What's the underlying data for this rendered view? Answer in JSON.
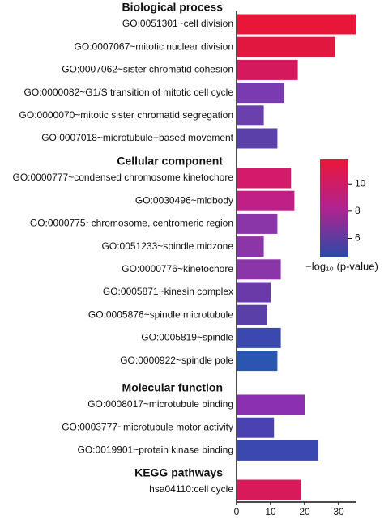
{
  "chart_data": {
    "type": "bar",
    "groups": [
      {
        "name": "Biological process",
        "categories": [
          "GO:0051301~cell division",
          "GO:0007067~mitotic nuclear division",
          "GO:0007062~sister chromatid cohesion",
          "GO:0000082~G1/S transition of mitotic cell cycle",
          "GO:0000070~mitotic sister chromatid segregation",
          "GO:0007018~microtubule−based movement"
        ],
        "values": [
          35,
          29,
          18,
          14,
          8,
          12
        ],
        "colors": [
          "#e8173a",
          "#e1173f",
          "#d41a5c",
          "#7a3bb0",
          "#6a3fae",
          "#5a40a8"
        ]
      },
      {
        "name": "Cellular component",
        "categories": [
          "GO:0000777~condensed chromosome kinetochore",
          "GO:0030496~midbody",
          "GO:0000775~chromosome, centromeric region",
          "GO:0051233~spindle midzone",
          "GO:0000776~kinetochore",
          "GO:0005871~kinesin complex",
          "GO:0005876~spindle microtubule",
          "GO:0005819~spindle",
          "GO:0000922~spindle pole"
        ],
        "values": [
          16,
          17,
          12,
          8,
          13,
          10,
          9,
          13,
          12
        ],
        "colors": [
          "#d41a6a",
          "#c01f86",
          "#8a35a8",
          "#8a35a8",
          "#8a35a8",
          "#6a3aa8",
          "#5a3fa8",
          "#3a48b0",
          "#2a55b0"
        ]
      },
      {
        "name": "Molecular function",
        "categories": [
          "GO:0008017~microtubule binding",
          "GO:0003777~microtubule motor activity",
          "GO:0019901~protein kinase binding"
        ],
        "values": [
          20,
          11,
          24
        ],
        "colors": [
          "#8a30b0",
          "#4a42b0",
          "#3a48b0"
        ]
      },
      {
        "name": "KEGG pathways",
        "categories": [
          "hsa04110:cell cycle"
        ],
        "values": [
          19
        ],
        "colors": [
          "#d81a5a"
        ]
      }
    ],
    "xlim": [
      0,
      35
    ],
    "xticks": [
      0,
      10,
      20,
      30
    ],
    "colorbar": {
      "label": "−log₁₀ (p-value)",
      "lim": [
        4.6,
        11.8
      ],
      "ticks": [
        6,
        8,
        10
      ],
      "colors": [
        "#2a4aa8",
        "#b0238f",
        "#e8173a"
      ]
    }
  }
}
